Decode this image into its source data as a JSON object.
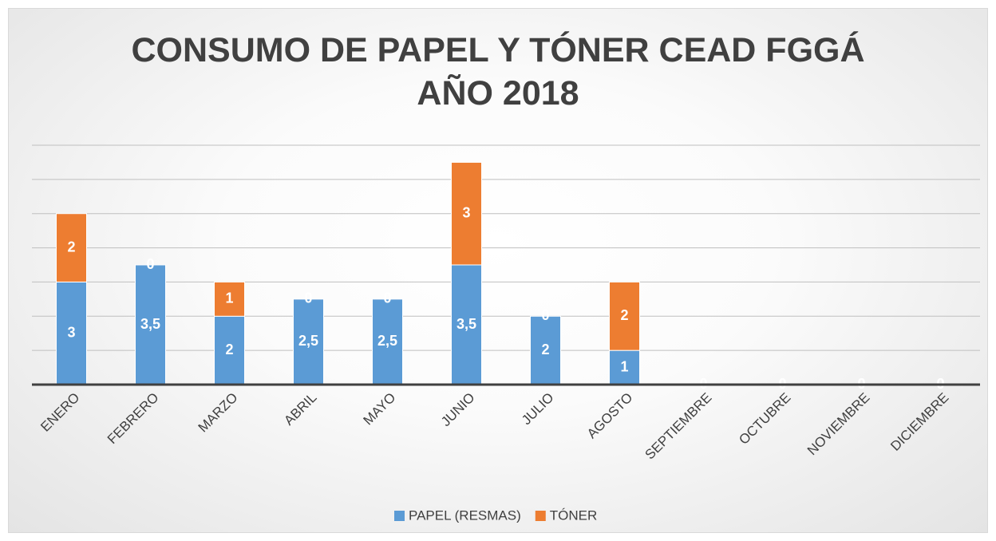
{
  "chart_data": {
    "type": "stacked_bar",
    "title": "CONSUMO DE PAPEL Y TÓNER CEAD FGGÁ AÑO 2018",
    "categories": [
      "ENERO",
      "FEBRERO",
      "MARZO",
      "ABRIL",
      "MAYO",
      "JUNIO",
      "JULIO",
      "AGOSTO",
      "SEPTIEMBRE",
      "OCTUBRE",
      "NOVIEMBRE",
      "DICIEMBRE"
    ],
    "series": [
      {
        "name": "PAPEL (RESMAS)",
        "color": "#5b9bd5",
        "values": [
          3,
          3.5,
          2,
          2.5,
          2.5,
          3.5,
          2,
          1,
          0,
          0,
          0,
          0
        ],
        "value_labels": [
          "3",
          "3,5",
          "2",
          "2,5",
          "2,5",
          "3,5",
          "2",
          "1",
          "0",
          "0",
          "0",
          "0"
        ]
      },
      {
        "name": "TÓNER",
        "color": "#ed7d31",
        "values": [
          2,
          0,
          1,
          0,
          0,
          3,
          0,
          2,
          0,
          0,
          0,
          0
        ]
      }
    ],
    "ylim": [
      0,
      7
    ],
    "yticks": [
      0,
      1,
      2,
      3,
      4,
      5,
      6,
      7
    ],
    "grid": true,
    "legend": "bottom"
  }
}
